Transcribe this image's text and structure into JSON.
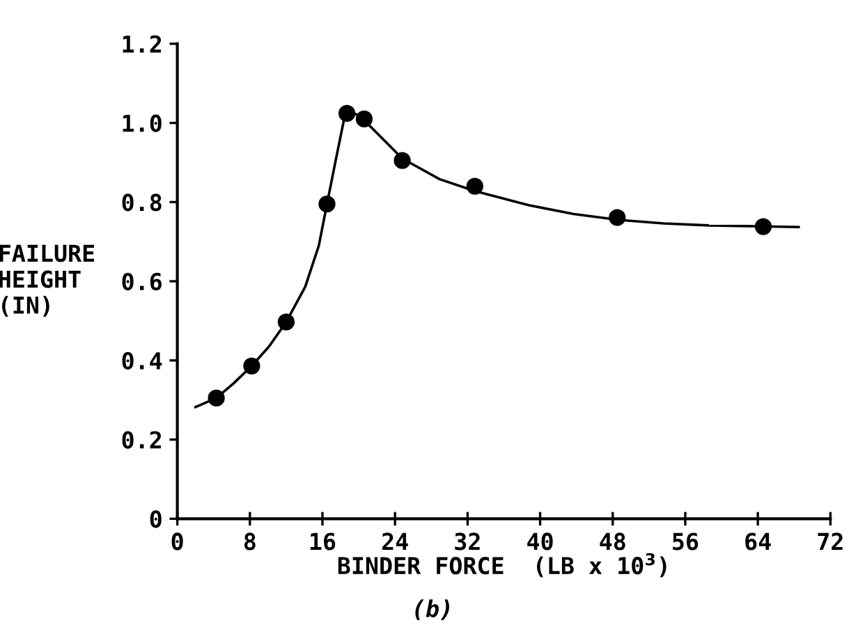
{
  "chart_data": {
    "type": "scatter",
    "xlabel": "BINDER FORCE  (LB x 10$^{3}$)",
    "ylabel": "FAILURE\nHEIGHT\n(IN)",
    "annotations": [
      "(b)"
    ],
    "xlim": [
      0,
      72
    ],
    "ylim": [
      0,
      1.2
    ],
    "xticks": [
      0,
      8,
      16,
      24,
      32,
      40,
      48,
      56,
      64,
      72
    ],
    "yticks": [
      0,
      0.2,
      0.4,
      0.6,
      0.8,
      {
        "value": 1,
        "label": "1.0"
      },
      1.2
    ],
    "grid": false,
    "series": [
      {
        "marker": "circle",
        "color": "#000000",
        "x": [
          4.3,
          8.2,
          12.0,
          16.5,
          18.7,
          20.6,
          24.8,
          32.8,
          48.5,
          64.6
        ],
        "values": [
          0.305,
          0.386,
          0.497,
          0.795,
          1.024,
          1.01,
          0.905,
          0.84,
          0.761,
          0.738
        ]
      },
      {
        "type": "line",
        "line_style": "solid",
        "color": "#000000",
        "x": [
          2,
          4.3,
          6.2,
          8.2,
          10.1,
          12,
          14.1,
          15.6,
          16.5,
          17.5,
          18.3,
          18.5,
          20,
          21.5,
          24.8,
          28.9,
          32.8,
          38.8,
          43.7,
          48.7,
          53.6,
          58.6,
          68.5
        ],
        "values": [
          0.282,
          0.305,
          0.342,
          0.386,
          0.435,
          0.497,
          0.586,
          0.69,
          0.795,
          0.91,
          1.0,
          1.03,
          1.02,
          0.986,
          0.91,
          0.858,
          0.828,
          0.792,
          0.77,
          0.755,
          0.746,
          0.741,
          0.737
        ]
      }
    ]
  }
}
